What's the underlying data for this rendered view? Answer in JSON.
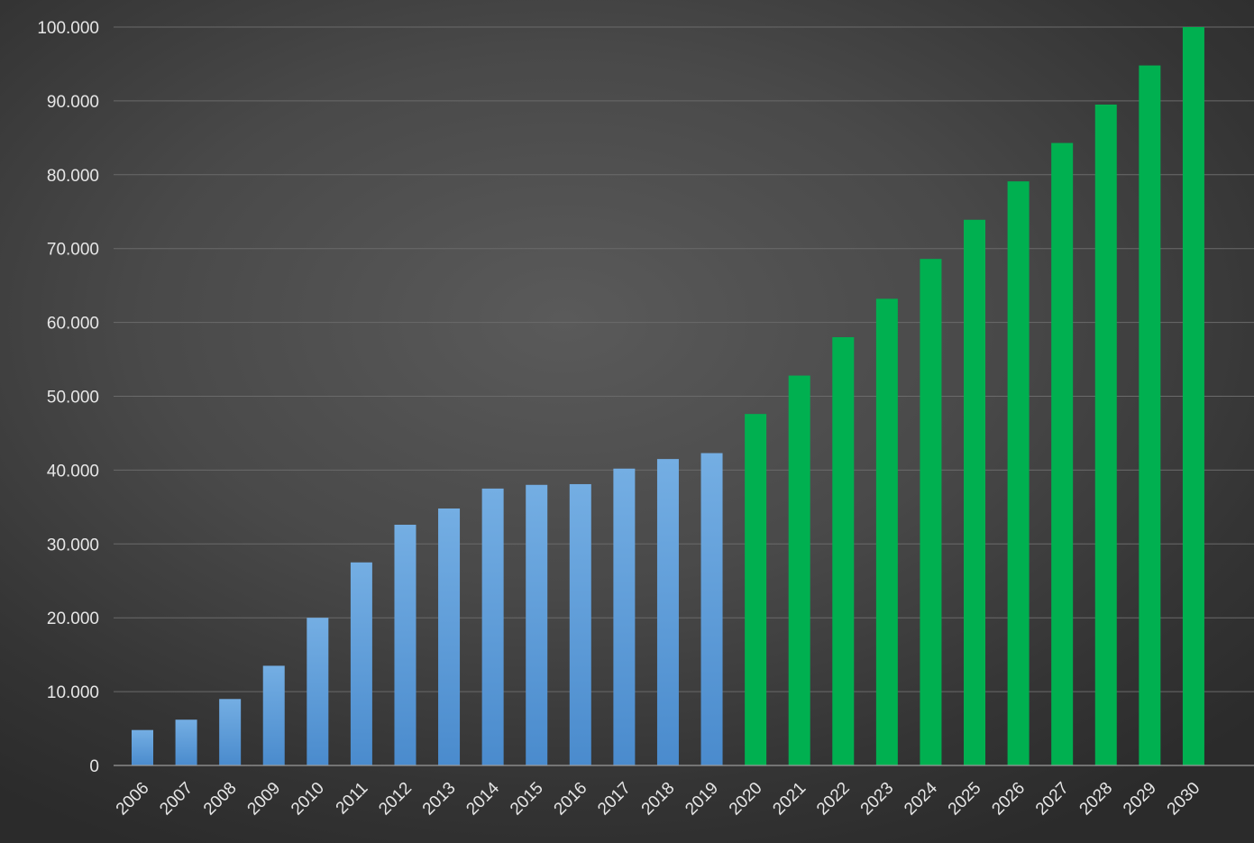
{
  "chart_data": {
    "type": "bar",
    "title": "",
    "xlabel": "",
    "ylabel": "",
    "categories": [
      "2006",
      "2007",
      "2008",
      "2009",
      "2010",
      "2011",
      "2012",
      "2013",
      "2014",
      "2015",
      "2016",
      "2017",
      "2018",
      "2019",
      "2020",
      "2021",
      "2022",
      "2023",
      "2024",
      "2025",
      "2026",
      "2027",
      "2028",
      "2029",
      "2030"
    ],
    "values": [
      4800,
      6200,
      9000,
      13500,
      20000,
      27500,
      32600,
      34800,
      37500,
      38000,
      38100,
      40200,
      41500,
      42300,
      47600,
      52800,
      58000,
      63200,
      68600,
      73900,
      79100,
      84300,
      89500,
      94800,
      100000
    ],
    "colors": {
      "historical": "#5b9bd5",
      "forecast": "#00b050",
      "grid": "#6a6a6a",
      "tick_text": "#e6e6e6"
    },
    "forecast_start": "2020",
    "ylim": [
      0,
      100000
    ],
    "ytick_values": [
      0,
      10000,
      20000,
      30000,
      40000,
      50000,
      60000,
      70000,
      80000,
      90000,
      100000
    ],
    "ytick_labels": [
      "0",
      "10.000",
      "20.000",
      "30.000",
      "40.000",
      "50.000",
      "60.000",
      "70.000",
      "80.000",
      "90.000",
      "100.000"
    ],
    "grid": true,
    "legend": "none"
  }
}
